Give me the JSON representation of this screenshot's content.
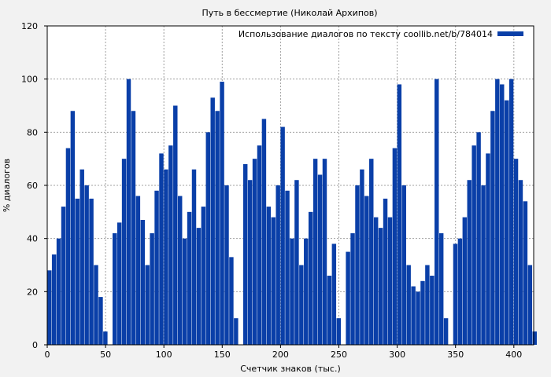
{
  "chart_data": {
    "type": "bar",
    "title": "Путь в бессмертие (Николай Архипов)",
    "xlabel": "Счетчик знаков (тыс.)",
    "ylabel": "% диалогов",
    "xlim": [
      0,
      417
    ],
    "ylim": [
      0,
      120
    ],
    "xticks": [
      "0",
      "50",
      "100",
      "150",
      "200",
      "250",
      "300",
      "350",
      "400"
    ],
    "yticks": [
      "0",
      "20",
      "40",
      "60",
      "80",
      "100",
      "120"
    ],
    "grid": true,
    "legend_position": "top-right",
    "series": [
      {
        "name": "Использование диалогов по тексту coollib.net/b/784014",
        "color": "#0a3fa8",
        "x": [
          0,
          4,
          8,
          12,
          16,
          20,
          24,
          28,
          32,
          36,
          40,
          44,
          48,
          52,
          56,
          60,
          64,
          68,
          72,
          76,
          80,
          84,
          88,
          92,
          96,
          100,
          104,
          108,
          112,
          116,
          120,
          124,
          128,
          132,
          136,
          140,
          144,
          148,
          152,
          156,
          160,
          164,
          168,
          172,
          176,
          180,
          184,
          188,
          192,
          196,
          200,
          204,
          208,
          212,
          216,
          220,
          224,
          228,
          232,
          236,
          240,
          244,
          248,
          252,
          256,
          260,
          264,
          268,
          272,
          276,
          280,
          284,
          288,
          292,
          296,
          300,
          304,
          308,
          312,
          316,
          320,
          324,
          328,
          332,
          336,
          340,
          344,
          348,
          352,
          356,
          360,
          364,
          368,
          372,
          376,
          380,
          384,
          388,
          392,
          396,
          400,
          404,
          408,
          412,
          416
        ],
        "values": [
          28,
          34,
          40,
          52,
          74,
          88,
          55,
          66,
          60,
          55,
          30,
          18,
          5,
          0,
          42,
          46,
          70,
          100,
          88,
          56,
          47,
          30,
          42,
          58,
          72,
          66,
          75,
          90,
          56,
          40,
          50,
          66,
          44,
          52,
          80,
          93,
          88,
          99,
          60,
          33,
          10,
          0,
          68,
          62,
          70,
          75,
          85,
          52,
          48,
          60,
          82,
          58,
          40,
          62,
          30,
          40,
          50,
          70,
          64,
          70,
          26,
          38,
          10,
          0,
          35,
          42,
          60,
          66,
          56,
          70,
          48,
          44,
          55,
          48,
          74,
          98,
          60,
          30,
          22,
          20,
          24,
          30,
          26,
          100,
          42,
          10,
          0,
          38,
          40,
          48,
          62,
          75,
          80,
          60,
          72,
          88,
          100,
          98,
          92,
          100,
          70,
          62,
          54,
          30,
          5
        ]
      }
    ]
  }
}
